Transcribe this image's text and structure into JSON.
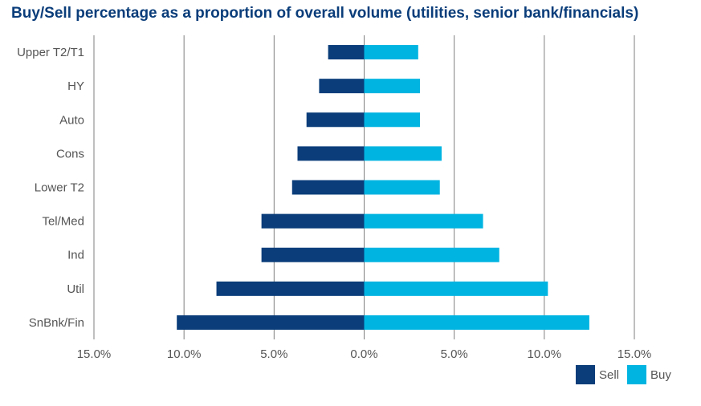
{
  "chart_data": {
    "type": "bar",
    "orientation": "horizontal",
    "title": "Buy/Sell percentage as a proportion of overall volume (utilities, senior bank/financials)",
    "categories": [
      "Upper T2/T1",
      "HY",
      "Auto",
      "Cons",
      "Lower T2",
      "Tel/Med",
      "Ind",
      "Util",
      "SnBnk/Fin"
    ],
    "series": [
      {
        "name": "Sell",
        "color": "#0a3d7a",
        "values": [
          -2.0,
          -2.5,
          -3.2,
          -3.7,
          -4.0,
          -5.7,
          -5.7,
          -8.2,
          -10.4
        ]
      },
      {
        "name": "Buy",
        "color": "#00b4e1",
        "values": [
          3.0,
          3.1,
          3.1,
          4.3,
          4.2,
          6.6,
          7.5,
          10.2,
          12.5
        ]
      }
    ],
    "xlim": [
      -15,
      15
    ],
    "xticks": [
      -15,
      -10,
      -5,
      0,
      5,
      10,
      15
    ],
    "xtick_labels": [
      "15.0%",
      "10.0%",
      "5.0%",
      "0.0%",
      "5.0%",
      "10.0%",
      "15.0%"
    ],
    "grid": "vertical",
    "legend_position": "bottom-right"
  }
}
